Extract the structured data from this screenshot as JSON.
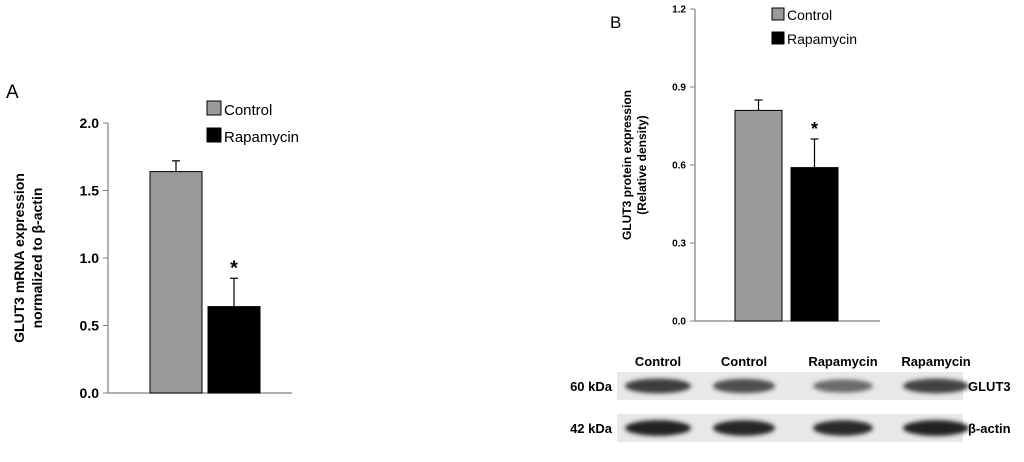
{
  "panel_a": {
    "letter": "A",
    "ylabel_line1": "GLUT3 mRNA expression",
    "ylabel_line2": "normalized to β-actin"
  },
  "panel_b": {
    "letter": "B",
    "ylabel_line1": "GLUT3 protein expression",
    "ylabel_line2": "(Relative density)",
    "blot": {
      "lanes": [
        "Control",
        "Control",
        "Rapamycin",
        "Rapamycin"
      ],
      "rows": [
        {
          "size": "60 kDa",
          "protein": "GLUT3",
          "intensity": [
            0.8,
            0.72,
            0.55,
            0.78
          ]
        },
        {
          "size": "42 kDa",
          "protein": "β-actin",
          "intensity": [
            0.95,
            0.93,
            0.9,
            0.95
          ]
        }
      ]
    }
  },
  "colors": {
    "control": "#999999",
    "rapamycin": "#000000",
    "axis": "#7f7f7f"
  },
  "chart_data": [
    {
      "type": "bar",
      "categories": [
        "Control",
        "Rapamycin"
      ],
      "values": [
        1.64,
        0.64
      ],
      "error": [
        0.08,
        0.21
      ],
      "significance": [
        "",
        "*"
      ],
      "ylim": [
        0,
        2.0
      ],
      "yticks": [
        "0.0",
        "0.5",
        "1.0",
        "1.5",
        "2.0"
      ],
      "ylabel": "GLUT3 mRNA expression normalized to β-actin",
      "legend": [
        "Control",
        "Rapamycin"
      ],
      "legend_position": "top-right"
    },
    {
      "type": "bar",
      "categories": [
        "Control",
        "Rapamycin"
      ],
      "values": [
        0.81,
        0.59
      ],
      "error": [
        0.04,
        0.11
      ],
      "significance": [
        "",
        "*"
      ],
      "ylim": [
        0,
        1.2
      ],
      "yticks": [
        "0.0",
        "0.3",
        "0.6",
        "0.9",
        "1.2"
      ],
      "ylabel": "GLUT3 protein expression (Relative density)",
      "legend": [
        "Control",
        "Rapamycin"
      ],
      "legend_position": "top-right"
    }
  ]
}
